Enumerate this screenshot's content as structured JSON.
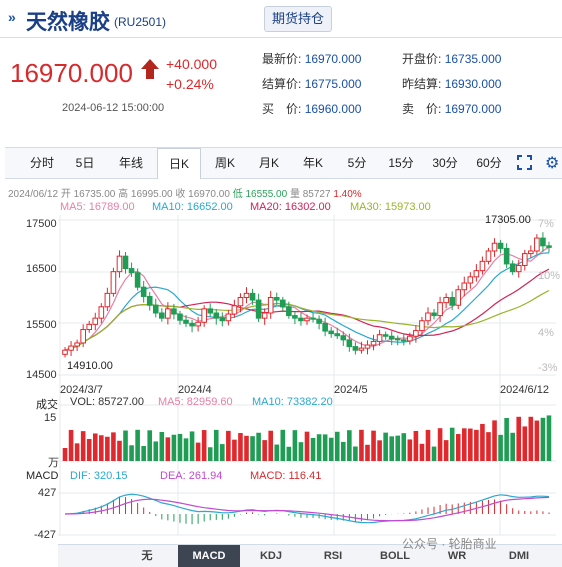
{
  "header": {
    "title": "天然橡胶",
    "code": "(RU2501)",
    "tab": "期货持仓"
  },
  "quote": {
    "price": "16970.000",
    "change": "+40.000",
    "pct": "+0.24%",
    "datetime": "2024-06-12 15:00:00",
    "fields": [
      {
        "label": "最新价:",
        "value": "16970.000"
      },
      {
        "label": "开盘价:",
        "value": "16735.000"
      },
      {
        "label": "结算价:",
        "value": "16775.000"
      },
      {
        "label": "昨结算:",
        "value": "16930.000"
      },
      {
        "label": "买　价:",
        "value": "16960.000"
      },
      {
        "label": "卖　价:",
        "value": "16970.000"
      }
    ]
  },
  "periods": [
    "分时",
    "5日",
    "年线",
    "日K",
    "周K",
    "月K",
    "年K",
    "5分",
    "15分",
    "30分",
    "60分"
  ],
  "active_period": "日K",
  "ohlc": {
    "date": "2024/06/12",
    "open": "开 16735.00",
    "high": "高 16995.00",
    "close": "收 16970.00",
    "low": "低 16555.00",
    "vol": "量 85727",
    "pct": "1.40%"
  },
  "ma": [
    {
      "label": "MA5: 16789.00",
      "color": "#e87fa5"
    },
    {
      "label": "MA10: 16652.00",
      "color": "#2aa8d0"
    },
    {
      "label": "MA20: 16302.00",
      "color": "#d22356"
    },
    {
      "label": "MA30: 15973.00",
      "color": "#9ab42a"
    }
  ],
  "yaxis": [
    "17500",
    "16500",
    "15500",
    "14500"
  ],
  "raxis": [
    "7%",
    "10%",
    "4%",
    "-3%"
  ],
  "xaxis": [
    "2024/3/7",
    "2024/4",
    "2024/5",
    "2024/6/12"
  ],
  "annot": {
    "high": "17305.00",
    "low": "14910.00"
  },
  "vol": {
    "title": "成交",
    "vol": "VOL: 85727.00",
    "ma5": "MA5: 82959.60",
    "ma10": "MA10: 73382.20",
    "top": "15",
    "unit": "万"
  },
  "macd": {
    "title": "MACD",
    "dif": "DIF: 320.15",
    "dea": "DEA: 261.94",
    "macd": "MACD: 116.41",
    "top": "427",
    "bottom": "-427"
  },
  "bottom_tabs": [
    "无",
    "MACD",
    "KDJ",
    "RSI",
    "BOLL",
    "WR",
    "DMI"
  ],
  "active_bottom": "MACD",
  "watermark": "公众号 · 轮胎商业",
  "chart_data": {
    "type": "candlestick",
    "title": "天然橡胶(RU2501)",
    "x_start": "2024/3/7",
    "x_end": "2024/6/12",
    "ylim": [
      14500,
      17500
    ],
    "close": [
      14980,
      15060,
      15120,
      15380,
      15480,
      15600,
      15820,
      16080,
      16500,
      16800,
      16560,
      16480,
      16200,
      16020,
      15850,
      15700,
      15600,
      15780,
      15680,
      15560,
      15500,
      15450,
      15520,
      15780,
      15700,
      15600,
      15550,
      15680,
      15840,
      16000,
      16080,
      15950,
      15600,
      15700,
      16000,
      15950,
      15820,
      15650,
      15600,
      15550,
      15600,
      15580,
      15500,
      15350,
      15300,
      15260,
      15180,
      15050,
      14980,
      15020,
      15080,
      15150,
      15280,
      15250,
      15200,
      15180,
      15160,
      15250,
      15360,
      15550,
      15700,
      15650,
      15900,
      16000,
      15850,
      16150,
      16280,
      16400,
      16520,
      16700,
      16900,
      17050,
      16950,
      16650,
      16500,
      16620,
      16850,
      16900,
      17150,
      17000,
      16970
    ]
  }
}
